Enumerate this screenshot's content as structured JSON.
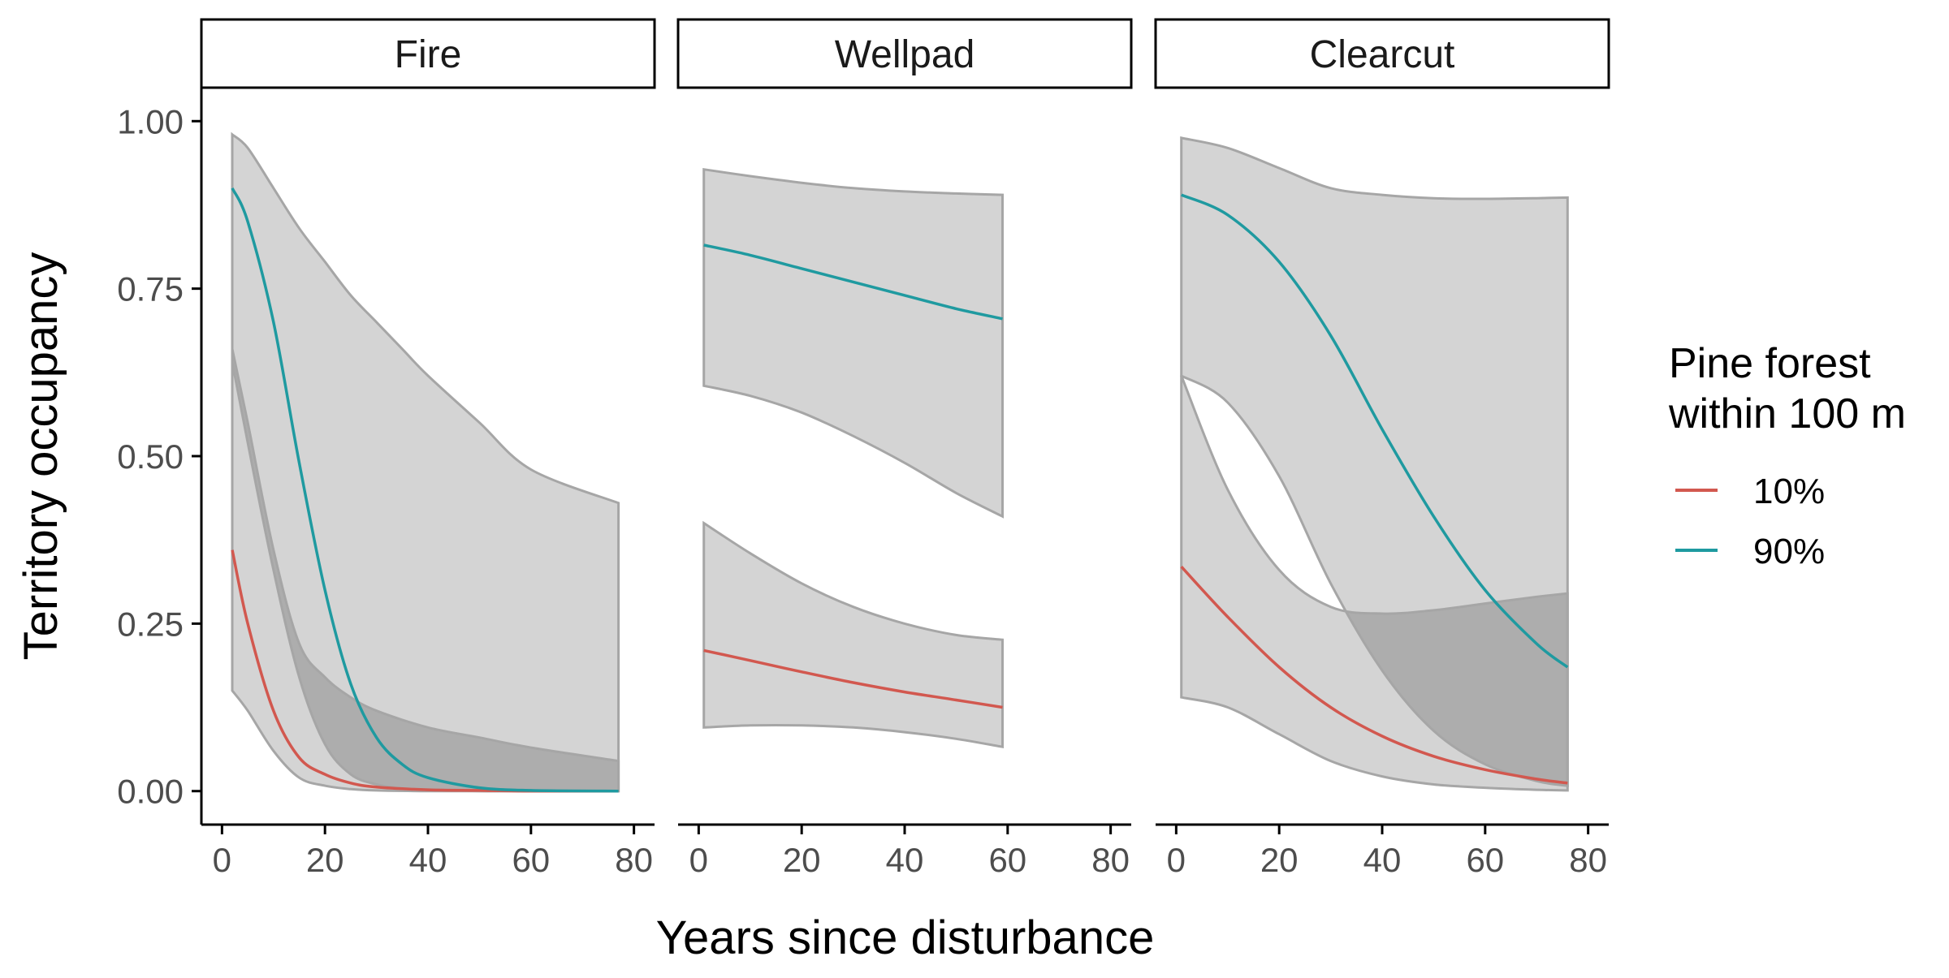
{
  "chart_data": {
    "type": "line",
    "ylabel": "Territory occupancy",
    "xlabel": "Years since disturbance",
    "xlim": [
      -4,
      84
    ],
    "ylim": [
      -0.05,
      1.05
    ],
    "x_ticks": [
      0,
      20,
      40,
      60,
      80
    ],
    "y_ticks": [
      0,
      0.25,
      0.5,
      0.75,
      1.0
    ],
    "y_tick_labels": [
      "0.00",
      "0.25",
      "0.50",
      "0.75",
      "1.00"
    ],
    "grid": false,
    "legend": {
      "title_lines": [
        "Pine forest",
        "within 100 m"
      ],
      "placement": "right",
      "entries": [
        {
          "label": "10%",
          "color": "#d2584f"
        },
        {
          "label": "90%",
          "color": "#1f9aa0"
        }
      ]
    },
    "colors": {
      "ribbon_fill": "#d4d4d4",
      "ribbon_overlap_fill": "#adadad",
      "ribbon_stroke": "#a6a6a6",
      "axis": "#000000"
    },
    "panels": [
      {
        "label": "Fire",
        "series": [
          {
            "name": "10%",
            "x": [
              2,
              5,
              10,
              15,
              20,
              25,
              30,
              40,
              50,
              60,
              77
            ],
            "y": [
              0.36,
              0.25,
              0.12,
              0.05,
              0.025,
              0.012,
              0.006,
              0.002,
              0.001,
              0,
              0
            ],
            "lower": [
              0.15,
              0.12,
              0.06,
              0.02,
              0.008,
              0.003,
              0.001,
              0,
              0,
              0,
              0
            ],
            "upper": [
              0.66,
              0.55,
              0.36,
              0.22,
              0.17,
              0.14,
              0.12,
              0.095,
              0.08,
              0.065,
              0.045
            ]
          },
          {
            "name": "90%",
            "x": [
              2,
              5,
              10,
              15,
              20,
              25,
              30,
              35,
              40,
              50,
              60,
              77
            ],
            "y": [
              0.9,
              0.85,
              0.7,
              0.49,
              0.3,
              0.16,
              0.08,
              0.04,
              0.02,
              0.005,
              0.001,
              0
            ],
            "lower": [
              0.64,
              0.52,
              0.33,
              0.17,
              0.07,
              0.025,
              0.01,
              0.004,
              0.002,
              0,
              0,
              0
            ],
            "upper": [
              0.98,
              0.96,
              0.9,
              0.84,
              0.79,
              0.74,
              0.7,
              0.66,
              0.62,
              0.55,
              0.48,
              0.43
            ]
          }
        ]
      },
      {
        "label": "Wellpad",
        "series": [
          {
            "name": "10%",
            "x": [
              1,
              10,
              20,
              30,
              40,
              50,
              59
            ],
            "y": [
              0.21,
              0.195,
              0.178,
              0.162,
              0.148,
              0.136,
              0.125
            ],
            "lower": [
              0.095,
              0.098,
              0.098,
              0.095,
              0.088,
              0.078,
              0.066
            ],
            "upper": [
              0.4,
              0.355,
              0.31,
              0.275,
              0.25,
              0.233,
              0.226
            ]
          },
          {
            "name": "90%",
            "x": [
              1,
              10,
              20,
              30,
              40,
              50,
              59
            ],
            "y": [
              0.815,
              0.8,
              0.78,
              0.76,
              0.74,
              0.72,
              0.705
            ],
            "lower": [
              0.605,
              0.59,
              0.565,
              0.53,
              0.49,
              0.445,
              0.41
            ],
            "upper": [
              0.928,
              0.918,
              0.908,
              0.9,
              0.895,
              0.892,
              0.89
            ]
          }
        ]
      },
      {
        "label": "Clearcut",
        "series": [
          {
            "name": "10%",
            "x": [
              1,
              10,
              20,
              30,
              40,
              50,
              60,
              70,
              76
            ],
            "y": [
              0.335,
              0.26,
              0.185,
              0.125,
              0.082,
              0.052,
              0.032,
              0.018,
              0.012
            ],
            "lower": [
              0.14,
              0.125,
              0.085,
              0.045,
              0.022,
              0.01,
              0.005,
              0.002,
              0.001
            ],
            "upper": [
              0.62,
              0.45,
              0.33,
              0.275,
              0.265,
              0.27,
              0.28,
              0.29,
              0.295
            ]
          },
          {
            "name": "90%",
            "x": [
              1,
              10,
              20,
              30,
              40,
              50,
              60,
              70,
              76
            ],
            "y": [
              0.89,
              0.86,
              0.79,
              0.68,
              0.54,
              0.41,
              0.3,
              0.22,
              0.185
            ],
            "lower": [
              0.62,
              0.58,
              0.47,
              0.31,
              0.18,
              0.09,
              0.04,
              0.015,
              0.008
            ],
            "upper": [
              0.975,
              0.96,
              0.93,
              0.9,
              0.89,
              0.885,
              0.884,
              0.885,
              0.886
            ]
          }
        ]
      }
    ]
  }
}
